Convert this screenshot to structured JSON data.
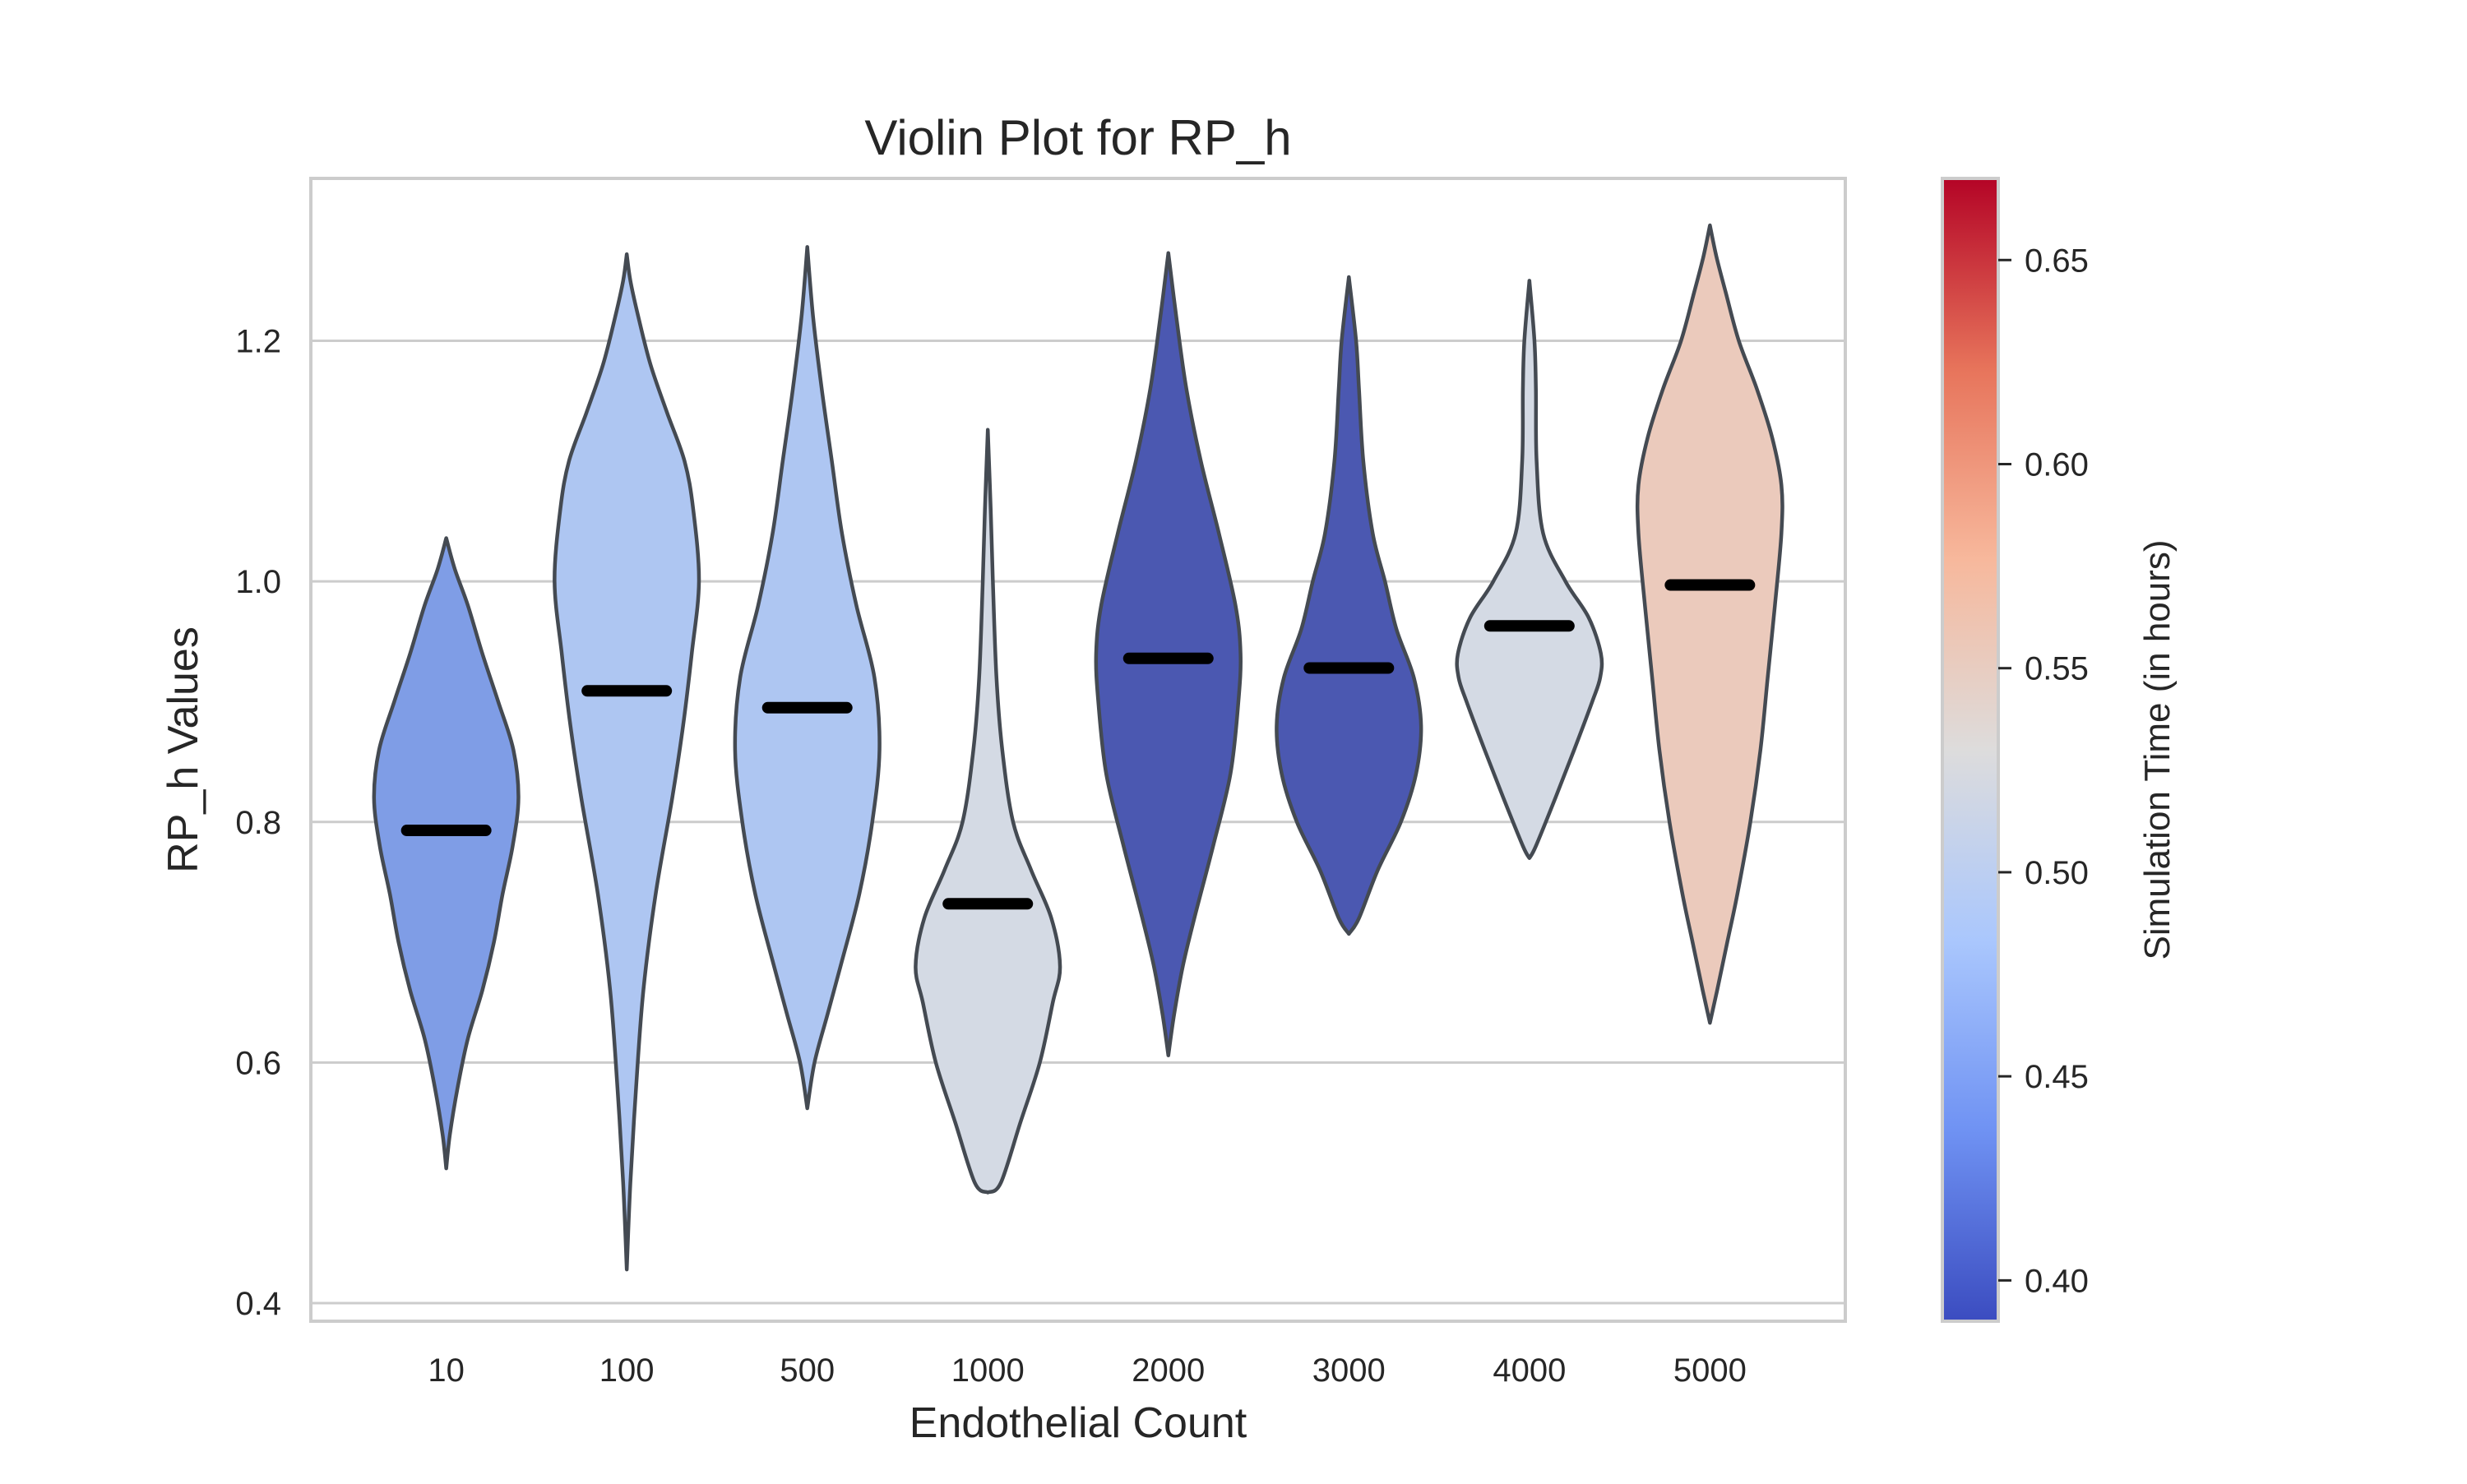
{
  "chart_data": {
    "type": "violin",
    "title": "Violin Plot for RP_h",
    "xlabel": "Endothelial Count",
    "ylabel": "RP_h Values",
    "ylim": [
      0.385,
      1.335
    ],
    "yticks": [
      "0.4",
      "0.6",
      "0.8",
      "1.0",
      "1.2"
    ],
    "grid": true,
    "categories": [
      "10",
      "100",
      "500",
      "1000",
      "2000",
      "3000",
      "4000",
      "5000"
    ],
    "medians": [
      0.793,
      0.909,
      0.895,
      0.732,
      0.936,
      0.928,
      0.963,
      0.997
    ],
    "ranges": [
      [
        0.512,
        1.036
      ],
      [
        0.428,
        1.272
      ],
      [
        0.562,
        1.278
      ],
      [
        0.492,
        1.126
      ],
      [
        0.606,
        1.273
      ],
      [
        0.707,
        1.253
      ],
      [
        0.77,
        1.25
      ],
      [
        0.633,
        1.296
      ]
    ],
    "simulation_time": [
      0.44,
      0.48,
      0.48,
      0.52,
      0.4,
      0.4,
      0.52,
      0.56
    ],
    "colors": [
      "#7f9de6",
      "#aec6f2",
      "#aec6f2",
      "#d4dae4",
      "#4b58b1",
      "#4b58b1",
      "#d4dae4",
      "#ebcabc"
    ],
    "widths": [
      [
        [
          0.512,
          0
        ],
        [
          0.54,
          0.05
        ],
        [
          0.58,
          0.16
        ],
        [
          0.62,
          0.3
        ],
        [
          0.66,
          0.5
        ],
        [
          0.7,
          0.66
        ],
        [
          0.74,
          0.78
        ],
        [
          0.78,
          0.92
        ],
        [
          0.82,
          1.0
        ],
        [
          0.86,
          0.93
        ],
        [
          0.9,
          0.72
        ],
        [
          0.94,
          0.5
        ],
        [
          0.98,
          0.3
        ],
        [
          1.01,
          0.12
        ],
        [
          1.036,
          0
        ]
      ],
      [
        [
          0.428,
          0
        ],
        [
          0.5,
          0.05
        ],
        [
          0.58,
          0.13
        ],
        [
          0.66,
          0.23
        ],
        [
          0.74,
          0.4
        ],
        [
          0.82,
          0.63
        ],
        [
          0.88,
          0.78
        ],
        [
          0.94,
          0.9
        ],
        [
          1.0,
          1.0
        ],
        [
          1.06,
          0.92
        ],
        [
          1.1,
          0.8
        ],
        [
          1.14,
          0.56
        ],
        [
          1.18,
          0.33
        ],
        [
          1.22,
          0.16
        ],
        [
          1.25,
          0.05
        ],
        [
          1.272,
          0
        ]
      ],
      [
        [
          0.562,
          0
        ],
        [
          0.6,
          0.1
        ],
        [
          0.64,
          0.28
        ],
        [
          0.68,
          0.46
        ],
        [
          0.74,
          0.72
        ],
        [
          0.8,
          0.9
        ],
        [
          0.86,
          1.0
        ],
        [
          0.92,
          0.93
        ],
        [
          0.98,
          0.68
        ],
        [
          1.04,
          0.48
        ],
        [
          1.1,
          0.34
        ],
        [
          1.16,
          0.2
        ],
        [
          1.22,
          0.08
        ],
        [
          1.278,
          0
        ]
      ],
      [
        [
          0.492,
          0
        ],
        [
          0.5,
          0.18
        ],
        [
          0.55,
          0.45
        ],
        [
          0.6,
          0.72
        ],
        [
          0.65,
          0.9
        ],
        [
          0.68,
          1.0
        ],
        [
          0.72,
          0.88
        ],
        [
          0.76,
          0.6
        ],
        [
          0.8,
          0.35
        ],
        [
          0.86,
          0.2
        ],
        [
          0.92,
          0.12
        ],
        [
          1.0,
          0.07
        ],
        [
          1.06,
          0.04
        ],
        [
          1.126,
          0
        ]
      ],
      [
        [
          0.606,
          0
        ],
        [
          0.64,
          0.08
        ],
        [
          0.68,
          0.2
        ],
        [
          0.72,
          0.36
        ],
        [
          0.78,
          0.62
        ],
        [
          0.84,
          0.86
        ],
        [
          0.9,
          0.97
        ],
        [
          0.94,
          1.0
        ],
        [
          0.98,
          0.93
        ],
        [
          1.04,
          0.7
        ],
        [
          1.1,
          0.45
        ],
        [
          1.16,
          0.25
        ],
        [
          1.22,
          0.11
        ],
        [
          1.273,
          0
        ]
      ],
      [
        [
          0.707,
          0
        ],
        [
          0.72,
          0.14
        ],
        [
          0.76,
          0.4
        ],
        [
          0.8,
          0.72
        ],
        [
          0.84,
          0.93
        ],
        [
          0.88,
          1.0
        ],
        [
          0.92,
          0.9
        ],
        [
          0.96,
          0.66
        ],
        [
          1.0,
          0.5
        ],
        [
          1.04,
          0.33
        ],
        [
          1.1,
          0.2
        ],
        [
          1.16,
          0.14
        ],
        [
          1.2,
          0.1
        ],
        [
          1.253,
          0
        ]
      ],
      [
        [
          0.77,
          0
        ],
        [
          0.78,
          0.09
        ],
        [
          0.82,
          0.36
        ],
        [
          0.86,
          0.62
        ],
        [
          0.9,
          0.87
        ],
        [
          0.92,
          0.98
        ],
        [
          0.94,
          0.99
        ],
        [
          0.97,
          0.82
        ],
        [
          1.0,
          0.5
        ],
        [
          1.04,
          0.19
        ],
        [
          1.1,
          0.1
        ],
        [
          1.16,
          0.09
        ],
        [
          1.2,
          0.07
        ],
        [
          1.25,
          0
        ]
      ],
      [
        [
          0.633,
          0
        ],
        [
          0.66,
          0.1
        ],
        [
          0.7,
          0.24
        ],
        [
          0.74,
          0.38
        ],
        [
          0.8,
          0.56
        ],
        [
          0.86,
          0.7
        ],
        [
          0.92,
          0.8
        ],
        [
          0.98,
          0.9
        ],
        [
          1.04,
          0.99
        ],
        [
          1.08,
          0.99
        ],
        [
          1.12,
          0.86
        ],
        [
          1.16,
          0.65
        ],
        [
          1.2,
          0.4
        ],
        [
          1.24,
          0.22
        ],
        [
          1.27,
          0.09
        ],
        [
          1.296,
          0
        ]
      ]
    ],
    "maxHalfWidth": [
      0.4,
      0.4,
      0.4,
      0.4,
      0.4,
      0.4,
      0.4,
      0.4
    ],
    "colorbar": {
      "label": "Simulation Time (in hours)",
      "range": [
        0.39,
        0.67
      ],
      "ticks": [
        "0.40",
        "0.45",
        "0.50",
        "0.55",
        "0.60",
        "0.65"
      ],
      "stops": [
        "#3b4cc0",
        "#6f92f3",
        "#aac7fd",
        "#dddcdc",
        "#f7b89c",
        "#e7745b",
        "#b40426"
      ]
    }
  }
}
